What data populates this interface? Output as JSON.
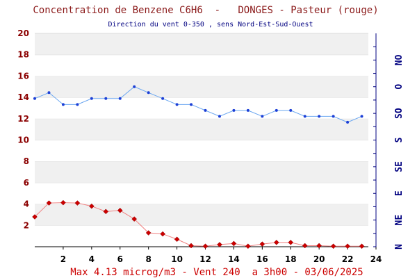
{
  "chart_data": {
    "type": "line",
    "title": "Concentration de Benzene C6H6  -   DONGES - Pasteur (rouge)",
    "subtitle": "Direction du vent 0-350 , sens Nord-Est-Sud-Ouest",
    "footer": "Max 4.13 microg/m3 - Vent 240  a 3h00 - 03/06/2025",
    "xlim": [
      0,
      24
    ],
    "ylim": [
      0,
      20
    ],
    "x_ticks": [
      "2",
      "4",
      "6",
      "8",
      "10",
      "12",
      "14",
      "16",
      "18",
      "20",
      "22",
      "24"
    ],
    "y_ticks": [
      "2",
      "4",
      "6",
      "8",
      "10",
      "12",
      "14",
      "16",
      "18",
      "20"
    ],
    "grid": "horizontal bands",
    "right_axis": {
      "ylim": [
        0,
        360
      ],
      "labels": [
        "N",
        "NE",
        "E",
        "SE",
        "S",
        "SO",
        "O",
        "NO"
      ]
    },
    "series": [
      {
        "role": "concentration",
        "axis": "left",
        "color": "#cc0000",
        "line_color": "#f08080",
        "x": [
          0,
          1,
          2,
          3,
          4,
          5,
          6,
          7,
          8,
          9,
          10,
          11,
          12,
          13,
          14,
          15,
          16,
          17,
          18,
          19,
          20,
          21,
          22,
          23
        ],
        "y": [
          2.8,
          4.1,
          4.13,
          4.1,
          3.8,
          3.3,
          3.4,
          2.6,
          1.3,
          1.2,
          0.7,
          0.1,
          0.05,
          0.2,
          0.3,
          0.05,
          0.25,
          0.4,
          0.4,
          0.1,
          0.1,
          0.05,
          0.05,
          0.05
        ]
      },
      {
        "role": "wind-direction",
        "axis": "right",
        "color": "#1c3fd6",
        "line_color": "#6aa6f0",
        "x": [
          0,
          1,
          2,
          3,
          4,
          5,
          6,
          7,
          8,
          9,
          10,
          11,
          12,
          13,
          14,
          15,
          16,
          17,
          18,
          19,
          20,
          21,
          22,
          23
        ],
        "y": [
          250,
          260,
          240,
          240,
          250,
          250,
          250,
          270,
          260,
          250,
          240,
          240,
          230,
          220,
          230,
          230,
          220,
          230,
          230,
          220,
          220,
          220,
          210,
          220
        ]
      }
    ]
  }
}
